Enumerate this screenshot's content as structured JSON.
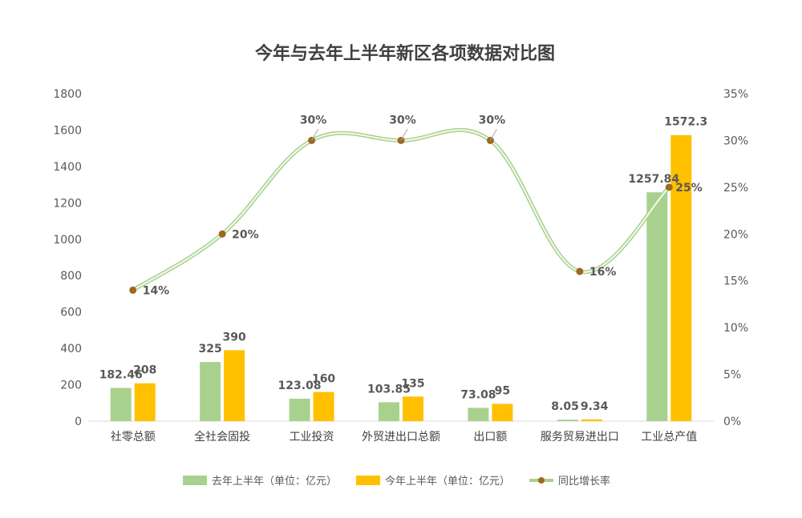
{
  "chart_data": {
    "type": "bar",
    "title": "今年与去年上半年新区各项数据对比图",
    "categories": [
      "社零总额",
      "全社会固投",
      "工业投资",
      "外贸进出口总额",
      "出口额",
      "服务贸易进出口",
      "工业总产值"
    ],
    "y_left": {
      "min": 0,
      "max": 1800,
      "step": 200,
      "ticks": [
        "0",
        "200",
        "400",
        "600",
        "800",
        "1000",
        "1200",
        "1400",
        "1600",
        "1800"
      ]
    },
    "y_right": {
      "min": 0,
      "max": 35,
      "step": 5,
      "ticks": [
        "0%",
        "5%",
        "10%",
        "15%",
        "20%",
        "25%",
        "30%",
        "35%"
      ]
    },
    "grid": false,
    "legend_position": "bottom",
    "series": [
      {
        "name": "去年上半年（单位：亿元）",
        "type": "bar",
        "axis": "left",
        "color": "#a9d18e",
        "values": [
          182.46,
          325,
          123.08,
          103.85,
          73.08,
          8.05,
          1257.84
        ],
        "labels": [
          "182.46",
          "325",
          "123.08",
          "103.85",
          "73.08",
          "8.05",
          "1257.84"
        ]
      },
      {
        "name": "今年上半年（单位：亿元）",
        "type": "bar",
        "axis": "right-bar",
        "color": "#ffc000",
        "values": [
          208,
          390,
          160,
          135,
          95,
          9.34,
          1572.3
        ],
        "labels": [
          "208",
          "390",
          "160",
          "135",
          "95",
          "9.34",
          "1572.3"
        ]
      },
      {
        "name": "同比增长率",
        "type": "line",
        "axis": "right",
        "color": "#a9d18e",
        "marker_color": "#9c6a1f",
        "values": [
          14,
          20,
          30,
          30,
          30,
          16,
          25
        ],
        "labels": [
          "14%",
          "20%",
          "30%",
          "30%",
          "30%",
          "16%",
          "25%"
        ]
      }
    ]
  }
}
